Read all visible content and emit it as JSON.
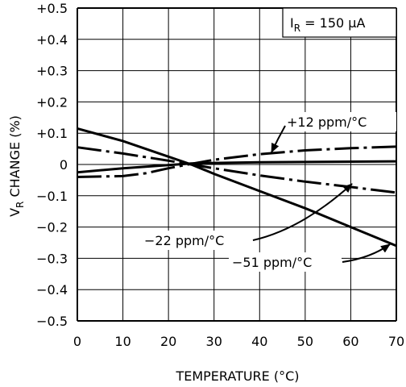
{
  "chart_data": {
    "type": "line",
    "title": "",
    "xlabel": "TEMPERATURE (°C)",
    "ylabel": {
      "pre": "V",
      "sub": "R",
      "post": " CHANGE (%)"
    },
    "xlim": [
      0,
      70
    ],
    "ylim": [
      -0.5,
      0.5
    ],
    "x_ticks": [
      "0",
      "10",
      "20",
      "30",
      "40",
      "50",
      "60",
      "70"
    ],
    "y_ticks": [
      "+0.5",
      "+0.4",
      "+0.3",
      "+0.2",
      "+0.1",
      "0",
      "−0.1",
      "−0.2",
      "−0.3",
      "−0.4",
      "−0.5"
    ],
    "grid": true,
    "condition": {
      "pre": "I",
      "sub": "R",
      "post": " = 150 μA"
    },
    "series": [
      {
        "name": "+12 ppm/°C",
        "style": "solid-dashdot",
        "x": [
          0,
          10,
          15,
          20,
          25,
          30,
          40,
          50,
          60,
          70
        ],
        "y": [
          -0.04,
          -0.037,
          -0.028,
          -0.012,
          0.002,
          0.015,
          0.033,
          0.045,
          0.052,
          0.057
        ]
      },
      {
        "name": "-22 ppm/°C",
        "style": "solid-dashdot",
        "x": [
          0,
          10,
          20,
          25,
          30,
          40,
          50,
          60,
          70
        ],
        "y": [
          0.055,
          0.035,
          0.012,
          0.0,
          -0.012,
          -0.035,
          -0.055,
          -0.072,
          -0.09
        ]
      },
      {
        "name": "-51 ppm/°C",
        "style": "solid",
        "x": [
          0,
          10,
          20,
          25,
          30,
          40,
          50,
          60,
          70
        ],
        "y": [
          0.115,
          0.075,
          0.025,
          0.0,
          -0.03,
          -0.085,
          -0.14,
          -0.2,
          -0.26
        ]
      },
      {
        "name": "",
        "style": "solid",
        "x": [
          0,
          10,
          20,
          25,
          30,
          40,
          50,
          60,
          70
        ],
        "y": [
          -0.025,
          -0.012,
          -0.002,
          0.003,
          0.005,
          0.007,
          0.008,
          0.009,
          0.01
        ]
      }
    ],
    "annotations": [
      {
        "text": "+12 ppm/°C",
        "series": 0
      },
      {
        "text": "−22 ppm/°C",
        "series": 1
      },
      {
        "text": "−51 ppm/°C",
        "series": 2
      }
    ]
  }
}
